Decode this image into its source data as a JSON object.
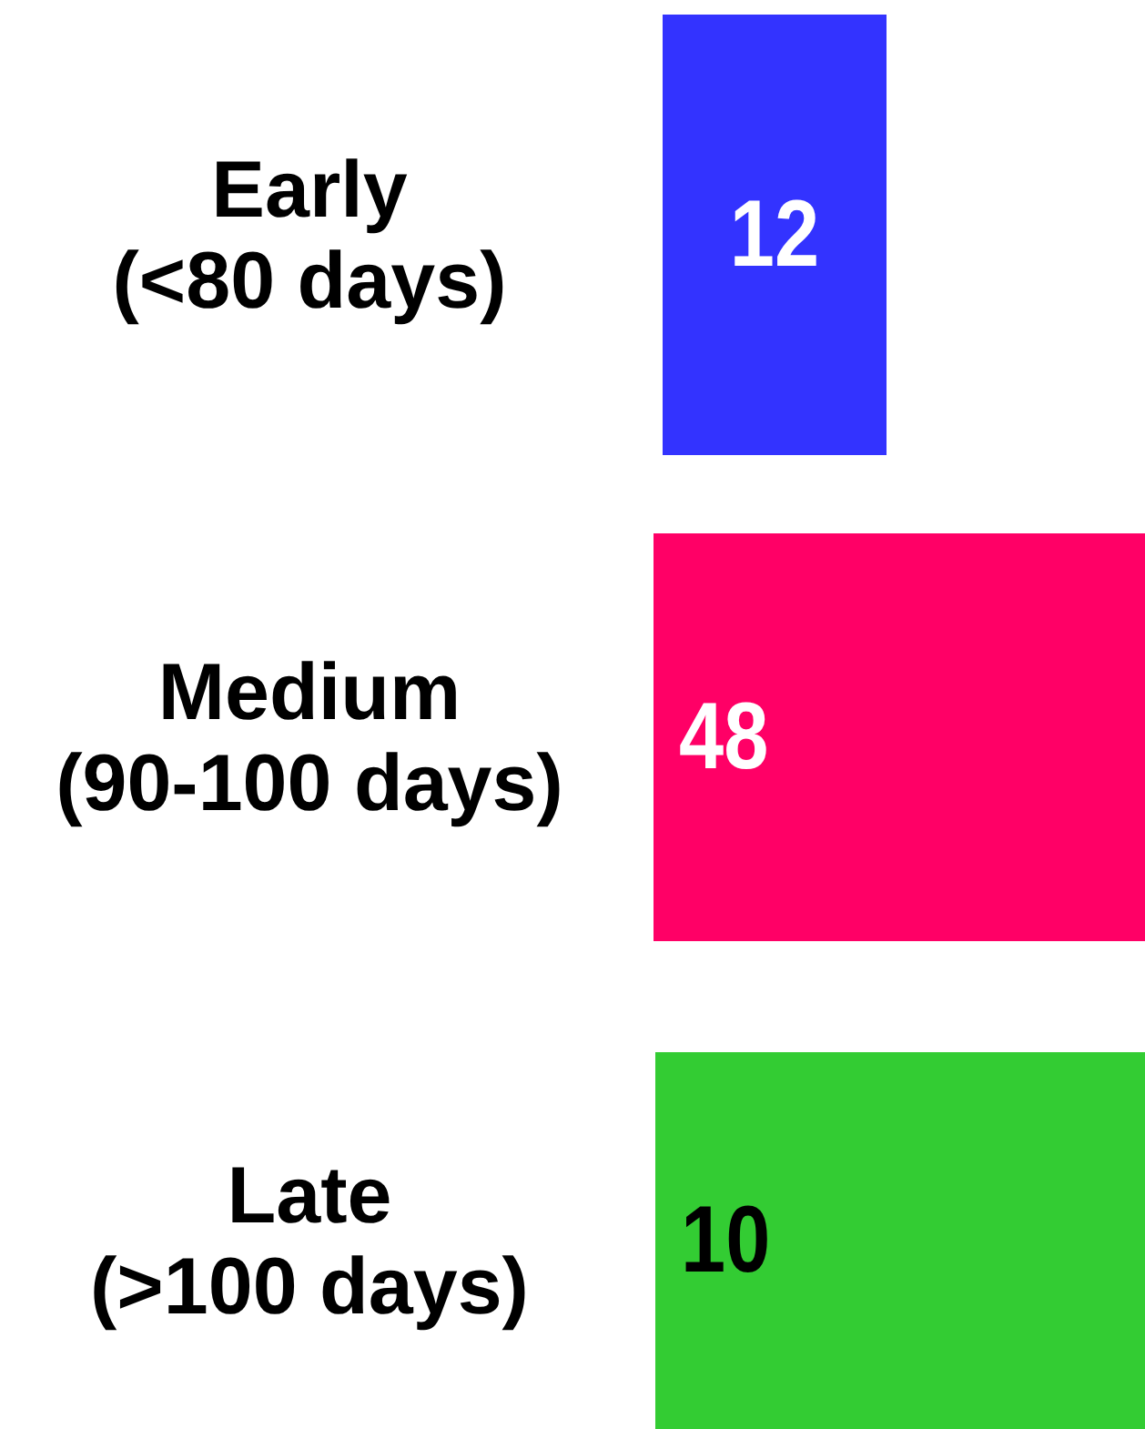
{
  "chart_data": {
    "type": "other",
    "categories": [
      "Early\n(<80 days)",
      "Medium\n(90-100 days)",
      "Late\n(>100 days)"
    ],
    "values": [
      12,
      48,
      10
    ],
    "colors": [
      "#3333ff",
      "#ff0066",
      "#33cc33"
    ],
    "data_labels": true
  }
}
